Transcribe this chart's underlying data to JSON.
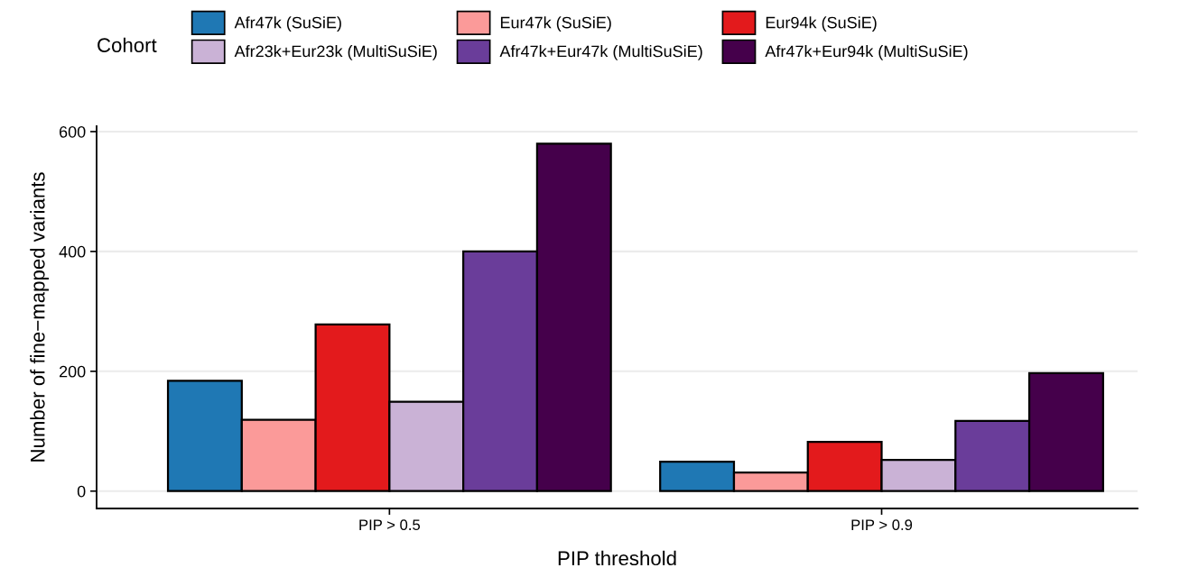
{
  "chart_data": {
    "type": "bar",
    "xlabel": "PIP threshold",
    "ylabel": "Number of fine−mapped variants",
    "legend_title": "Cohort",
    "categories": [
      "PIP > 0.5",
      "PIP > 0.9"
    ],
    "series": [
      {
        "name": "Afr47k (SuSiE)",
        "color": "#1f78b4",
        "values": [
          184,
          49
        ]
      },
      {
        "name": "Eur47k (SuSiE)",
        "color": "#fb9a99",
        "values": [
          119,
          31
        ]
      },
      {
        "name": "Eur94k (SuSiE)",
        "color": "#e31a1c",
        "values": [
          278,
          82
        ]
      },
      {
        "name": "Afr23k+Eur23k (MultiSuSiE)",
        "color": "#cab2d6",
        "values": [
          149,
          52
        ]
      },
      {
        "name": "Afr47k+Eur47k (MultiSuSiE)",
        "color": "#6a3d9a",
        "values": [
          400,
          117
        ]
      },
      {
        "name": "Afr47k+Eur94k (MultiSuSiE)",
        "color": "#45004b",
        "values": [
          580,
          197
        ]
      }
    ],
    "ylim": [
      -29,
      609
    ],
    "yticks": [
      0,
      200,
      400,
      600
    ],
    "grid": "y",
    "legend": "top"
  }
}
